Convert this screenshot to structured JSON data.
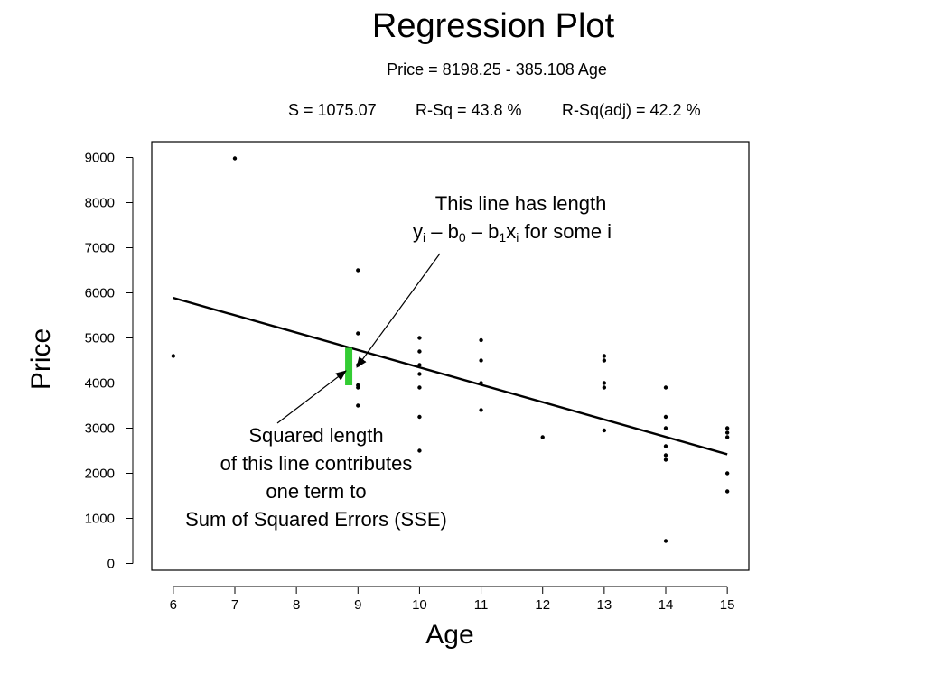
{
  "chart_data": {
    "type": "scatter",
    "title": "Regression Plot",
    "subtitle": "Price = 8198.25 - 385.108 Age",
    "stats": {
      "s": "S = 1075.07",
      "rsq": "R-Sq = 43.8 %",
      "rsq_adj": "R-Sq(adj) = 42.2 %"
    },
    "xlabel": "Age",
    "ylabel": "Price",
    "xlim": [
      5.65,
      15.35
    ],
    "ylim": [
      -150,
      9350
    ],
    "x_ticks": [
      6,
      7,
      8,
      9,
      10,
      11,
      12,
      13,
      14,
      15
    ],
    "y_ticks": [
      0,
      1000,
      2000,
      3000,
      4000,
      5000,
      6000,
      7000,
      8000,
      9000
    ],
    "grid": false,
    "points": [
      {
        "x": 6,
        "y": 4600
      },
      {
        "x": 7,
        "y": 8980
      },
      {
        "x": 9,
        "y": 6500
      },
      {
        "x": 9,
        "y": 5100
      },
      {
        "x": 9,
        "y": 4400
      },
      {
        "x": 9,
        "y": 3950
      },
      {
        "x": 9,
        "y": 3900
      },
      {
        "x": 9,
        "y": 3500
      },
      {
        "x": 10,
        "y": 5000
      },
      {
        "x": 10,
        "y": 4700
      },
      {
        "x": 10,
        "y": 4400
      },
      {
        "x": 10,
        "y": 4200
      },
      {
        "x": 10,
        "y": 3900
      },
      {
        "x": 10,
        "y": 3250
      },
      {
        "x": 10,
        "y": 2500
      },
      {
        "x": 11,
        "y": 4950
      },
      {
        "x": 11,
        "y": 4500
      },
      {
        "x": 11,
        "y": 4000
      },
      {
        "x": 11,
        "y": 3400
      },
      {
        "x": 12,
        "y": 2800
      },
      {
        "x": 13,
        "y": 4600
      },
      {
        "x": 13,
        "y": 4500
      },
      {
        "x": 13,
        "y": 4000
      },
      {
        "x": 13,
        "y": 3900
      },
      {
        "x": 13,
        "y": 2950
      },
      {
        "x": 14,
        "y": 3900
      },
      {
        "x": 14,
        "y": 3250
      },
      {
        "x": 14,
        "y": 3000
      },
      {
        "x": 14,
        "y": 2600
      },
      {
        "x": 14,
        "y": 2400
      },
      {
        "x": 14,
        "y": 2300
      },
      {
        "x": 14,
        "y": 500
      },
      {
        "x": 15,
        "y": 3000
      },
      {
        "x": 15,
        "y": 2900
      },
      {
        "x": 15,
        "y": 2800
      },
      {
        "x": 15,
        "y": 2000
      },
      {
        "x": 15,
        "y": 1600
      }
    ],
    "fit_line": {
      "intercept": 8198.25,
      "slope": -385.108,
      "x_range": [
        6,
        15
      ]
    },
    "residual_highlight": {
      "x": 8.85,
      "y_from": 3950,
      "y_to": 4780,
      "color": "#33cc33"
    },
    "annotations": [
      {
        "lines": [
          "This line has length"
        ]
      },
      {
        "lines": [
          "Squared length",
          "of this line contributes",
          "one term to",
          "Sum of Squared Errors (SSE)"
        ]
      }
    ],
    "formula_parts": {
      "y": "y",
      "i": "i",
      "b": "b",
      "zero": "0",
      "one": "1",
      "x": "x",
      "dash": "–",
      "tail": "for some i"
    }
  }
}
